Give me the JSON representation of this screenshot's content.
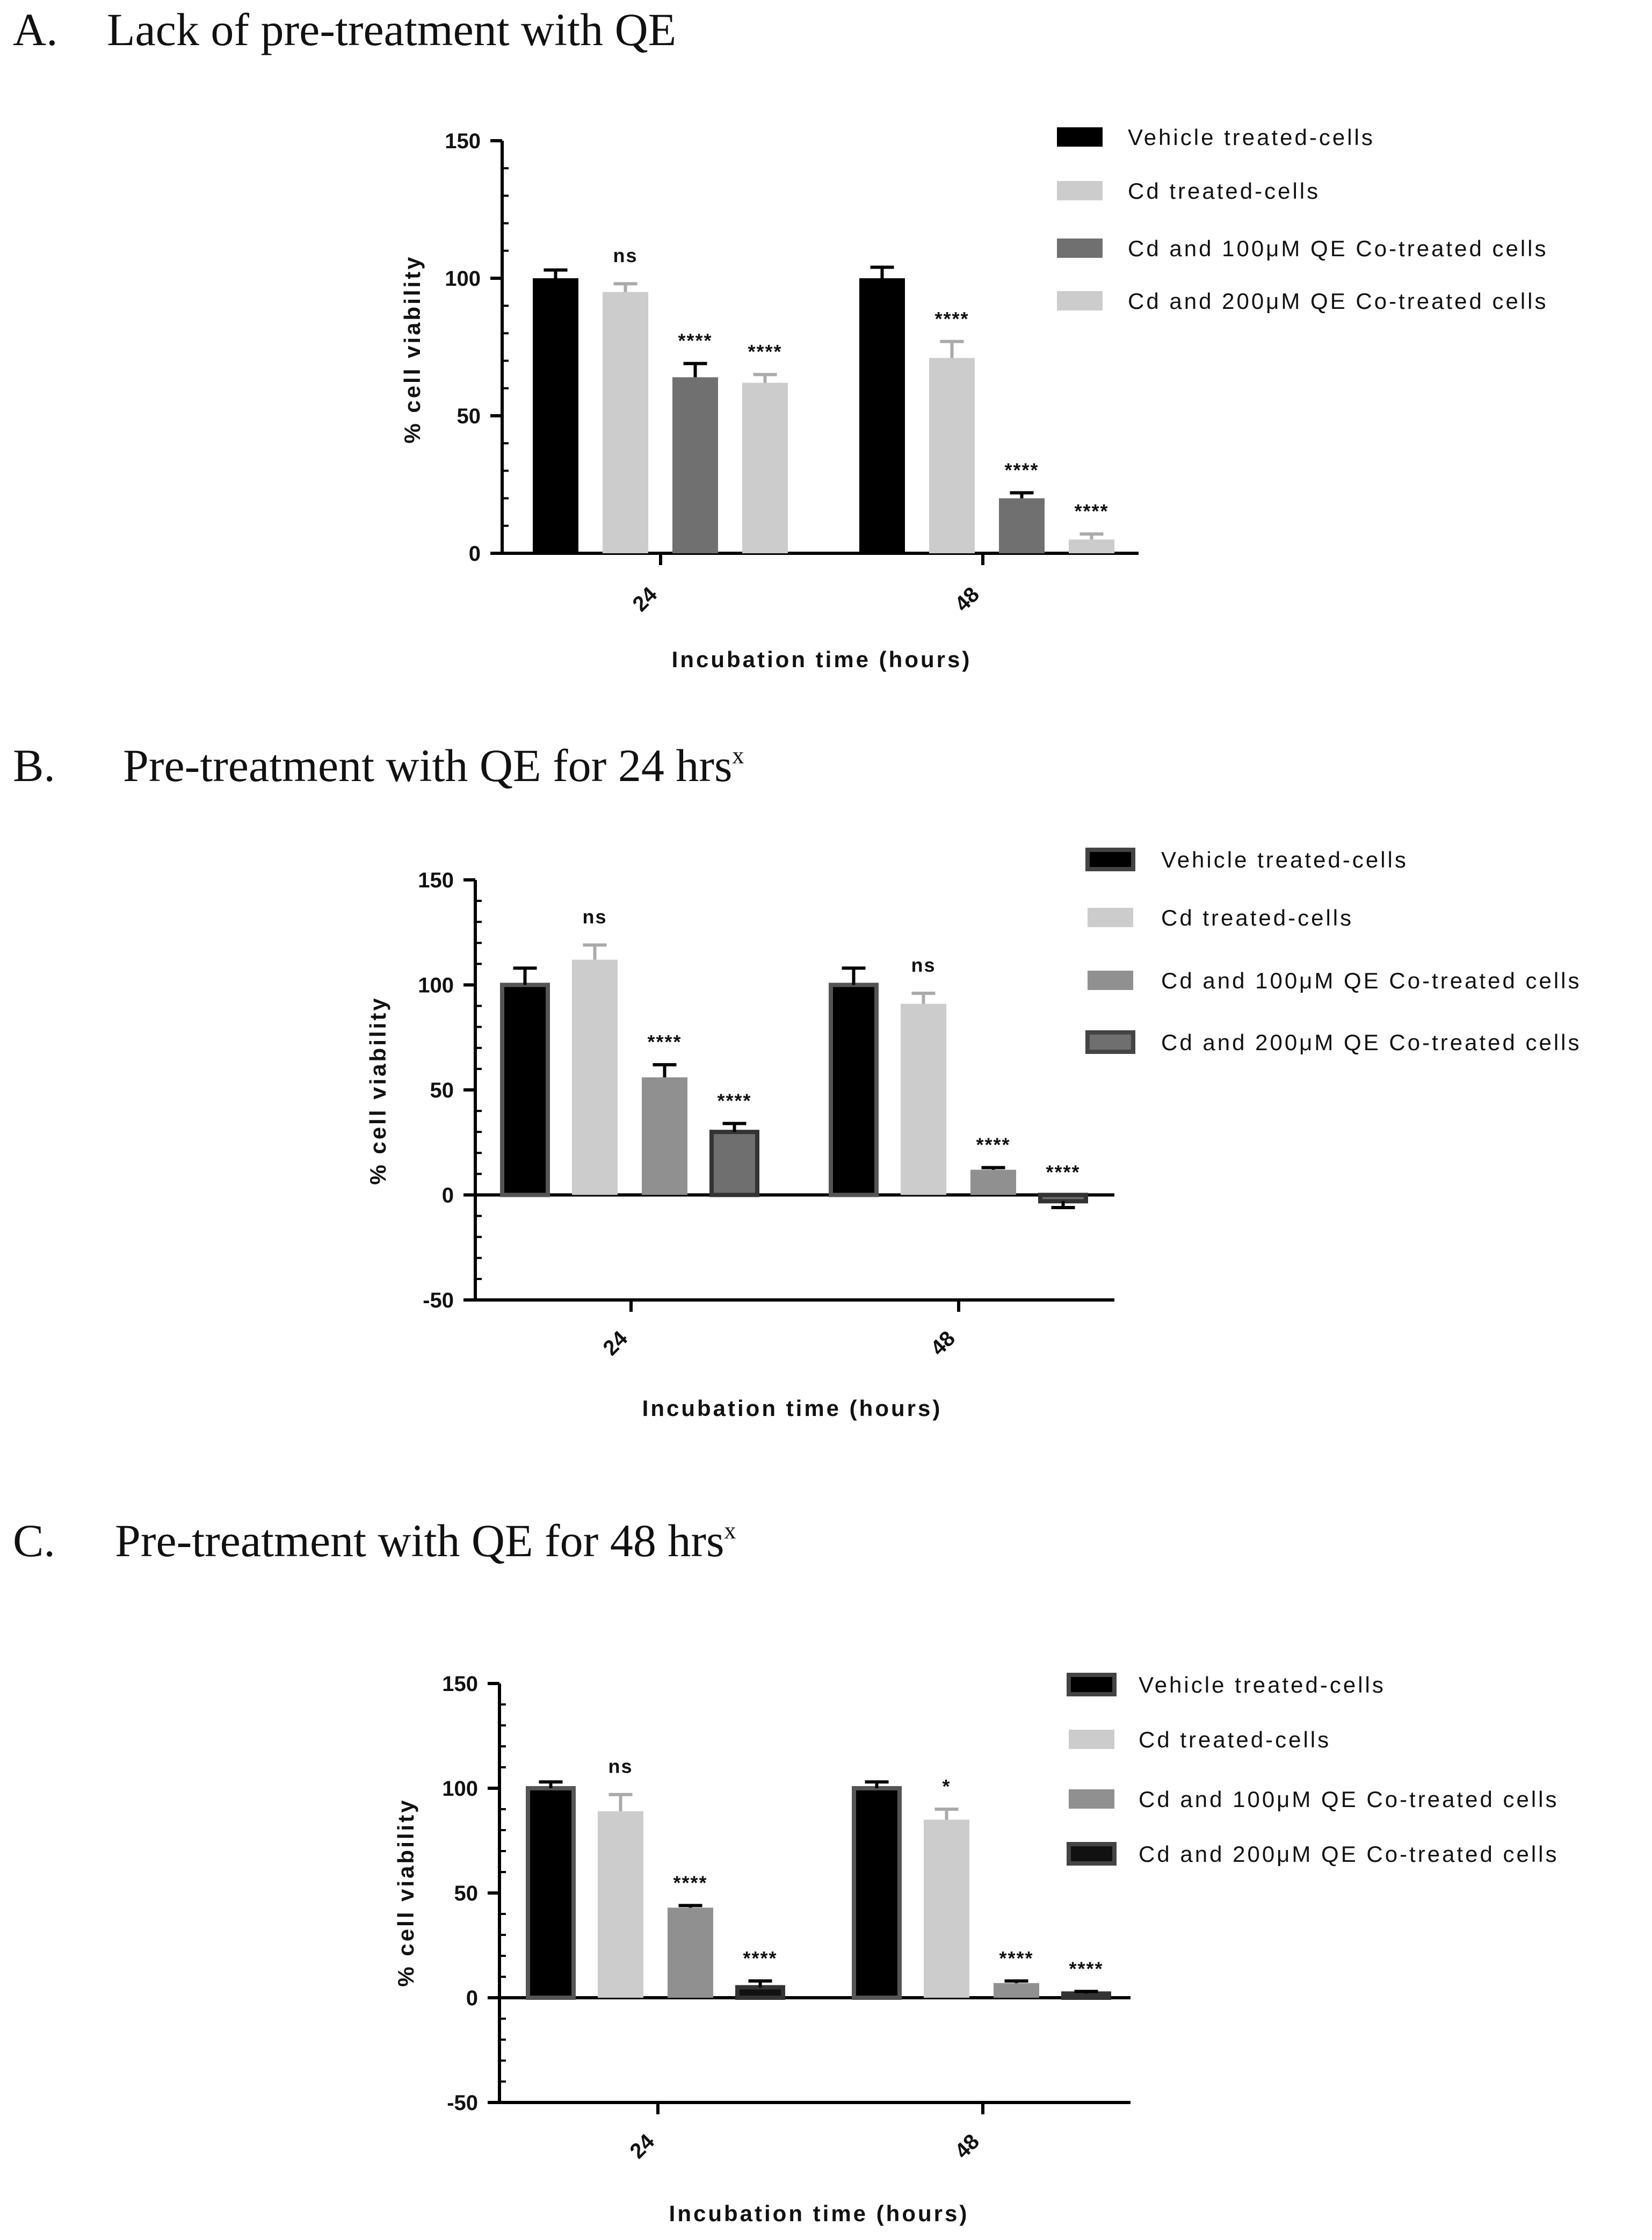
{
  "colors": {
    "black": "#000000",
    "light": "#cccccc",
    "mid": "#909090",
    "dark": "#6f6f6f",
    "axis": "#000000"
  },
  "chart_data": [
    {
      "type": "bar",
      "title_letter": "A.",
      "title": "Lack of pre-treatment with QE",
      "title_sup": "",
      "xlabel": "Incubation time (hours)",
      "ylabel": "% cell viability",
      "ylim": [
        0,
        150
      ],
      "yticks": [
        0,
        50,
        100,
        150
      ],
      "categories": [
        "24",
        "48"
      ],
      "series": [
        {
          "name": "Vehicle treated-cells",
          "color": "#000000",
          "values": [
            100,
            100
          ],
          "errors": [
            3,
            4
          ],
          "sig": [
            "",
            ""
          ]
        },
        {
          "name": "Cd treated-cells",
          "color": "#cccccc",
          "values": [
            95,
            71
          ],
          "errors": [
            3,
            6
          ],
          "sig": [
            "ns",
            "****"
          ]
        },
        {
          "name": "Cd and 100μM QE Co-treated cells",
          "color": "#707070",
          "values": [
            64,
            20
          ],
          "errors": [
            5,
            2
          ],
          "sig": [
            "****",
            "****"
          ]
        },
        {
          "name": "Cd and 200μM QE Co-treated cells",
          "color": "#cccccc",
          "values": [
            62,
            5
          ],
          "errors": [
            3,
            2
          ],
          "sig": [
            "****",
            "****"
          ]
        }
      ]
    },
    {
      "type": "bar",
      "title_letter": "B.",
      "title": "Pre-treatment with QE for 24 hrs",
      "title_sup": "x",
      "xlabel": "Incubation time (hours)",
      "ylabel": "% cell viability",
      "ylim": [
        -50,
        150
      ],
      "yticks": [
        -50,
        0,
        50,
        100,
        150
      ],
      "categories": [
        "24",
        "48"
      ],
      "series": [
        {
          "name": "Vehicle treated-cells",
          "color": "#000000",
          "values": [
            100,
            100
          ],
          "errors": [
            8,
            8
          ],
          "sig": [
            "",
            ""
          ]
        },
        {
          "name": "Cd treated-cells",
          "color": "#cccccc",
          "values": [
            112,
            91
          ],
          "errors": [
            7,
            5
          ],
          "sig": [
            "ns",
            "ns"
          ]
        },
        {
          "name": "Cd and 100μM QE Co-treated cells",
          "color": "#909090",
          "values": [
            56,
            12
          ],
          "errors": [
            6,
            1
          ],
          "sig": [
            "****",
            "****"
          ]
        },
        {
          "name": "Cd and 200μM QE Co-treated cells",
          "color": "#6f6f6f",
          "values": [
            30,
            -3
          ],
          "errors": [
            4,
            3
          ],
          "sig": [
            "****",
            "****"
          ]
        }
      ]
    },
    {
      "type": "bar",
      "title_letter": "C.",
      "title": "Pre-treatment with QE for 48 hrs",
      "title_sup": "x",
      "xlabel": "Incubation time (hours)",
      "ylabel": "% cell viability",
      "ylim": [
        -50,
        150
      ],
      "yticks": [
        -50,
        0,
        50,
        100,
        150
      ],
      "categories": [
        "24",
        "48"
      ],
      "series": [
        {
          "name": "Vehicle treated-cells",
          "color": "#000000",
          "values": [
            100,
            100
          ],
          "errors": [
            3,
            3
          ],
          "sig": [
            "",
            ""
          ]
        },
        {
          "name": "Cd treated-cells",
          "color": "#cccccc",
          "values": [
            89,
            85
          ],
          "errors": [
            8,
            5
          ],
          "sig": [
            "ns",
            "*"
          ]
        },
        {
          "name": "Cd and 100μM QE Co-treated cells",
          "color": "#909090",
          "values": [
            43,
            7
          ],
          "errors": [
            1,
            1
          ],
          "sig": [
            "****",
            "****"
          ]
        },
        {
          "name": "Cd and 200μM QE Co-treated cells",
          "color": "#111111",
          "values": [
            5,
            2
          ],
          "errors": [
            3,
            1
          ],
          "sig": [
            "****",
            "****"
          ]
        }
      ]
    }
  ]
}
